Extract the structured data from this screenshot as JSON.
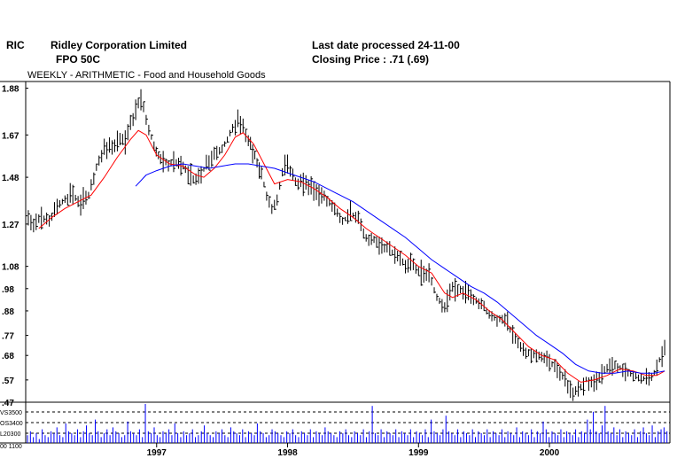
{
  "header": {
    "code": "RIC",
    "company": "Ridley Corporation Limited",
    "security": "FPO 50C",
    "last_date": "Last date processed 24-11-00",
    "closing": "Closing Price : .71  (.69)",
    "subtitle": "WEEKLY - ARITHMETIC -      Food and Household Goods"
  },
  "colors": {
    "price": "#000000",
    "ma_short": "#ff0000",
    "ma_long": "#0000ff",
    "volume": "#0000ff",
    "frame": "#000000"
  },
  "chart_data": {
    "type": "line",
    "x_unit": "year",
    "y_ticks": [
      "1.88",
      "1.67",
      "1.48",
      "1.27",
      "1.08",
      ".98",
      ".88",
      ".77",
      ".68",
      ".57",
      ".47"
    ],
    "y_tick_values": [
      1.88,
      1.67,
      1.48,
      1.27,
      1.08,
      0.98,
      0.88,
      0.77,
      0.68,
      0.57,
      0.47
    ],
    "ylim": [
      0.47,
      1.91
    ],
    "xlim": [
      1996.0,
      2000.92
    ],
    "x_ticks": [
      {
        "label": "1997",
        "x": 1997.0
      },
      {
        "label": "1998",
        "x": 1998.0
      },
      {
        "label": "1999",
        "x": 1999.0
      },
      {
        "label": "2000",
        "x": 2000.0
      }
    ],
    "series": [
      {
        "key": "price",
        "style": "weekly high-low bars",
        "points": [
          [
            1996.0,
            1.3
          ],
          [
            1996.06,
            1.27
          ],
          [
            1996.12,
            1.3
          ],
          [
            1996.18,
            1.28
          ],
          [
            1996.24,
            1.35
          ],
          [
            1996.3,
            1.38
          ],
          [
            1996.36,
            1.4
          ],
          [
            1996.42,
            1.37
          ],
          [
            1996.48,
            1.4
          ],
          [
            1996.52,
            1.48
          ],
          [
            1996.56,
            1.56
          ],
          [
            1996.6,
            1.6
          ],
          [
            1996.64,
            1.63
          ],
          [
            1996.68,
            1.62
          ],
          [
            1996.72,
            1.66
          ],
          [
            1996.76,
            1.64
          ],
          [
            1996.8,
            1.72
          ],
          [
            1996.84,
            1.78
          ],
          [
            1996.88,
            1.83
          ],
          [
            1996.9,
            1.79
          ],
          [
            1996.94,
            1.7
          ],
          [
            1996.98,
            1.62
          ],
          [
            1997.03,
            1.56
          ],
          [
            1997.09,
            1.54
          ],
          [
            1997.15,
            1.55
          ],
          [
            1997.22,
            1.52
          ],
          [
            1997.28,
            1.47
          ],
          [
            1997.34,
            1.49
          ],
          [
            1997.4,
            1.56
          ],
          [
            1997.46,
            1.58
          ],
          [
            1997.52,
            1.63
          ],
          [
            1997.58,
            1.7
          ],
          [
            1997.62,
            1.73
          ],
          [
            1997.66,
            1.7
          ],
          [
            1997.7,
            1.64
          ],
          [
            1997.75,
            1.58
          ],
          [
            1997.8,
            1.49
          ],
          [
            1997.84,
            1.4
          ],
          [
            1997.88,
            1.34
          ],
          [
            1997.92,
            1.38
          ],
          [
            1997.96,
            1.5
          ],
          [
            1998.0,
            1.54
          ],
          [
            1998.06,
            1.46
          ],
          [
            1998.12,
            1.45
          ],
          [
            1998.18,
            1.43
          ],
          [
            1998.24,
            1.4
          ],
          [
            1998.3,
            1.38
          ],
          [
            1998.36,
            1.33
          ],
          [
            1998.42,
            1.28
          ],
          [
            1998.48,
            1.32
          ],
          [
            1998.54,
            1.29
          ],
          [
            1998.6,
            1.21
          ],
          [
            1998.66,
            1.2
          ],
          [
            1998.72,
            1.17
          ],
          [
            1998.78,
            1.16
          ],
          [
            1998.84,
            1.12
          ],
          [
            1998.9,
            1.09
          ],
          [
            1998.96,
            1.08
          ],
          [
            1999.02,
            1.05
          ],
          [
            1999.08,
            1.04
          ],
          [
            1999.14,
            0.94
          ],
          [
            1999.2,
            0.9
          ],
          [
            1999.26,
            0.98
          ],
          [
            1999.32,
            0.98
          ],
          [
            1999.38,
            0.95
          ],
          [
            1999.44,
            0.93
          ],
          [
            1999.5,
            0.9
          ],
          [
            1999.56,
            0.85
          ],
          [
            1999.62,
            0.84
          ],
          [
            1999.68,
            0.82
          ],
          [
            1999.74,
            0.76
          ],
          [
            1999.8,
            0.7
          ],
          [
            1999.86,
            0.69
          ],
          [
            1999.92,
            0.68
          ],
          [
            1999.98,
            0.66
          ],
          [
            2000.04,
            0.63
          ],
          [
            2000.1,
            0.59
          ],
          [
            2000.16,
            0.51
          ],
          [
            2000.22,
            0.53
          ],
          [
            2000.28,
            0.57
          ],
          [
            2000.34,
            0.55
          ],
          [
            2000.4,
            0.6
          ],
          [
            2000.46,
            0.64
          ],
          [
            2000.52,
            0.63
          ],
          [
            2000.58,
            0.61
          ],
          [
            2000.64,
            0.59
          ],
          [
            2000.7,
            0.58
          ],
          [
            2000.76,
            0.57
          ],
          [
            2000.8,
            0.6
          ],
          [
            2000.84,
            0.66
          ],
          [
            2000.88,
            0.71
          ]
        ]
      },
      {
        "key": "ma_short",
        "points": [
          [
            1996.1,
            1.25
          ],
          [
            1996.2,
            1.3
          ],
          [
            1996.3,
            1.34
          ],
          [
            1996.4,
            1.37
          ],
          [
            1996.5,
            1.4
          ],
          [
            1996.6,
            1.48
          ],
          [
            1996.7,
            1.57
          ],
          [
            1996.8,
            1.65
          ],
          [
            1996.86,
            1.69
          ],
          [
            1996.92,
            1.67
          ],
          [
            1997.0,
            1.58
          ],
          [
            1997.1,
            1.54
          ],
          [
            1997.2,
            1.53
          ],
          [
            1997.3,
            1.49
          ],
          [
            1997.36,
            1.48
          ],
          [
            1997.44,
            1.52
          ],
          [
            1997.52,
            1.58
          ],
          [
            1997.6,
            1.66
          ],
          [
            1997.66,
            1.68
          ],
          [
            1997.74,
            1.63
          ],
          [
            1997.82,
            1.54
          ],
          [
            1997.9,
            1.45
          ],
          [
            1998.0,
            1.47
          ],
          [
            1998.1,
            1.46
          ],
          [
            1998.2,
            1.43
          ],
          [
            1998.3,
            1.39
          ],
          [
            1998.4,
            1.34
          ],
          [
            1998.5,
            1.3
          ],
          [
            1998.6,
            1.25
          ],
          [
            1998.7,
            1.21
          ],
          [
            1998.8,
            1.17
          ],
          [
            1998.9,
            1.13
          ],
          [
            1999.0,
            1.08
          ],
          [
            1999.1,
            1.05
          ],
          [
            1999.2,
            0.96
          ],
          [
            1999.26,
            0.94
          ],
          [
            1999.34,
            0.96
          ],
          [
            1999.44,
            0.93
          ],
          [
            1999.54,
            0.88
          ],
          [
            1999.64,
            0.84
          ],
          [
            1999.74,
            0.78
          ],
          [
            1999.84,
            0.72
          ],
          [
            1999.94,
            0.68
          ],
          [
            2000.04,
            0.66
          ],
          [
            2000.14,
            0.6
          ],
          [
            2000.24,
            0.56
          ],
          [
            2000.34,
            0.57
          ],
          [
            2000.44,
            0.59
          ],
          [
            2000.54,
            0.62
          ],
          [
            2000.64,
            0.61
          ],
          [
            2000.74,
            0.59
          ],
          [
            2000.82,
            0.59
          ],
          [
            2000.88,
            0.61
          ]
        ]
      },
      {
        "key": "ma_long",
        "points": [
          [
            1996.84,
            1.44
          ],
          [
            1996.92,
            1.49
          ],
          [
            1997.0,
            1.51
          ],
          [
            1997.1,
            1.53
          ],
          [
            1997.2,
            1.54
          ],
          [
            1997.3,
            1.53
          ],
          [
            1997.4,
            1.52
          ],
          [
            1997.5,
            1.53
          ],
          [
            1997.6,
            1.54
          ],
          [
            1997.7,
            1.54
          ],
          [
            1997.8,
            1.53
          ],
          [
            1997.9,
            1.52
          ],
          [
            1998.0,
            1.5
          ],
          [
            1998.1,
            1.48
          ],
          [
            1998.2,
            1.46
          ],
          [
            1998.3,
            1.43
          ],
          [
            1998.4,
            1.4
          ],
          [
            1998.5,
            1.37
          ],
          [
            1998.6,
            1.33
          ],
          [
            1998.7,
            1.29
          ],
          [
            1998.8,
            1.25
          ],
          [
            1998.9,
            1.21
          ],
          [
            1999.0,
            1.16
          ],
          [
            1999.1,
            1.11
          ],
          [
            1999.2,
            1.07
          ],
          [
            1999.3,
            1.03
          ],
          [
            1999.4,
            0.99
          ],
          [
            1999.5,
            0.96
          ],
          [
            1999.6,
            0.92
          ],
          [
            1999.7,
            0.87
          ],
          [
            1999.8,
            0.82
          ],
          [
            1999.9,
            0.77
          ],
          [
            2000.0,
            0.73
          ],
          [
            2000.1,
            0.69
          ],
          [
            2000.2,
            0.64
          ],
          [
            2000.3,
            0.61
          ],
          [
            2000.4,
            0.6
          ],
          [
            2000.5,
            0.6
          ],
          [
            2000.6,
            0.61
          ],
          [
            2000.7,
            0.6
          ],
          [
            2000.8,
            0.6
          ],
          [
            2000.88,
            0.61
          ]
        ]
      }
    ],
    "volume": {
      "labels": [
        "VS3500",
        "OS3400",
        "L20300",
        "00 1100"
      ],
      "bars": [
        0.2,
        0.3,
        0.15,
        0.25,
        0.1,
        0.35,
        0.2,
        0.15,
        0.3,
        0.25,
        0.4,
        0.2,
        0.15,
        0.5,
        0.3,
        0.25,
        0.2,
        0.35,
        0.15,
        0.3,
        0.45,
        0.25,
        0.2,
        0.6,
        0.3,
        0.15,
        0.25,
        0.35,
        0.2,
        0.4,
        0.3,
        0.25,
        0.15,
        0.2,
        0.55,
        0.3,
        0.25,
        0.2,
        0.35,
        0.15,
        1.0,
        0.3,
        0.25,
        0.4,
        0.2,
        0.15,
        0.3,
        0.25,
        0.35,
        0.2,
        0.5,
        0.25,
        0.15,
        0.3,
        0.2,
        0.25,
        0.35,
        0.15,
        0.2,
        0.3,
        0.45,
        0.25,
        0.2,
        0.15,
        0.3,
        0.25,
        0.35,
        0.2,
        0.15,
        0.4,
        0.3,
        0.25,
        0.2,
        0.35,
        0.15,
        0.3,
        0.25,
        0.2,
        0.5,
        0.3,
        0.25,
        0.15,
        0.2,
        0.35,
        0.3,
        0.25,
        0.2,
        0.15,
        0.3,
        0.25,
        0.35,
        0.2,
        0.15,
        0.3,
        0.25,
        0.2,
        0.35,
        0.15,
        0.3,
        0.25,
        0.2,
        0.4,
        0.3,
        0.25,
        0.2,
        0.15,
        0.3,
        0.25,
        0.35,
        0.2,
        0.15,
        0.3,
        0.25,
        0.2,
        0.35,
        0.15,
        0.3,
        0.95,
        0.25,
        0.2,
        0.35,
        0.15,
        0.3,
        0.25,
        0.2,
        0.35,
        0.15,
        0.3,
        0.25,
        0.2,
        0.35,
        0.15,
        0.3,
        0.25,
        0.2,
        0.35,
        0.15,
        0.6,
        0.3,
        0.25,
        0.2,
        0.35,
        0.7,
        0.3,
        0.25,
        0.2,
        0.35,
        0.15,
        0.3,
        0.25,
        0.2,
        0.35,
        0.15,
        0.3,
        0.25,
        0.2,
        0.35,
        0.15,
        0.3,
        0.25,
        0.2,
        0.35,
        0.15,
        0.3,
        0.25,
        0.2,
        0.4,
        0.15,
        0.3,
        0.25,
        0.2,
        0.35,
        0.15,
        0.3,
        0.25,
        0.55,
        0.35,
        0.15,
        0.3,
        0.25,
        0.2,
        0.35,
        0.15,
        0.3,
        0.25,
        0.2,
        0.35,
        0.15,
        0.3,
        0.25,
        0.6,
        0.35,
        0.8,
        0.3,
        0.25,
        0.45,
        0.95,
        0.3,
        0.25,
        0.4,
        0.2,
        0.35,
        0.15,
        0.3,
        0.25,
        0.2,
        0.35,
        0.15,
        0.3,
        0.4,
        0.25,
        0.2,
        0.45,
        0.15,
        0.3,
        0.35,
        0.4,
        0.3
      ]
    }
  }
}
